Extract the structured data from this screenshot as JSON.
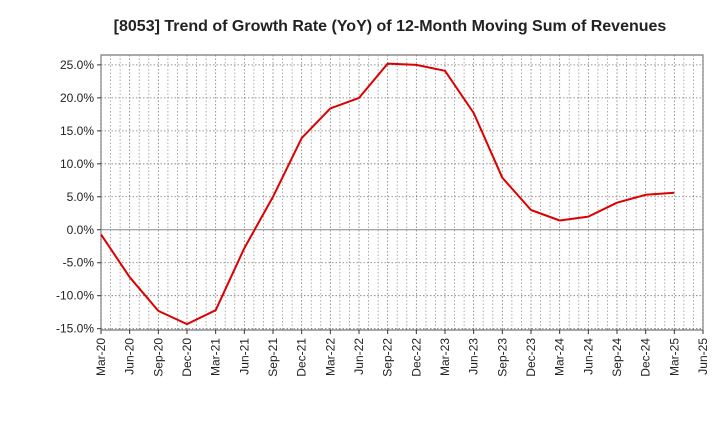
{
  "chart_data": {
    "type": "line",
    "title": "[8053]  Trend of Growth Rate (YoY) of 12-Month Moving Sum of Revenues",
    "xlabel": "",
    "ylabel": "",
    "x_ticks": [
      "Mar-20",
      "Jun-20",
      "Sep-20",
      "Dec-20",
      "Mar-21",
      "Jun-21",
      "Sep-21",
      "Dec-21",
      "Mar-22",
      "Jun-22",
      "Sep-22",
      "Dec-22",
      "Mar-23",
      "Jun-23",
      "Sep-23",
      "Dec-23",
      "Mar-24",
      "Jun-24",
      "Sep-24",
      "Dec-24",
      "Mar-25",
      "Jun-25"
    ],
    "y_ticks": [
      25.0,
      20.0,
      15.0,
      10.0,
      5.0,
      0.0,
      -5.0,
      -10.0,
      -15.0
    ],
    "y_tick_labels": [
      "25.0%",
      "20.0%",
      "15.0%",
      "10.0%",
      "5.0%",
      "0.0%",
      "-5.0%",
      "-10.0%",
      "-15.0%"
    ],
    "ylim": [
      -15.2,
      26.5
    ],
    "grid": true,
    "zero_line": true,
    "series": [
      {
        "color": "#dd0000",
        "x": [
          "Mar-20",
          "Jun-20",
          "Sep-20",
          "Dec-20",
          "Mar-21",
          "Jun-21",
          "Sep-21",
          "Dec-21",
          "Mar-22",
          "Jun-22",
          "Sep-22",
          "Dec-22",
          "Mar-23",
          "Jun-23",
          "Sep-23",
          "Dec-23",
          "Mar-24",
          "Jun-24",
          "Sep-24",
          "Dec-24",
          "Mar-25"
        ],
        "values": [
          -0.7,
          -7.2,
          -12.3,
          -14.3,
          -12.2,
          -2.8,
          5.0,
          13.9,
          18.4,
          20.0,
          25.2,
          25.0,
          24.1,
          17.7,
          7.9,
          3.0,
          1.4,
          2.0,
          4.1,
          5.3,
          5.6
        ]
      }
    ]
  }
}
